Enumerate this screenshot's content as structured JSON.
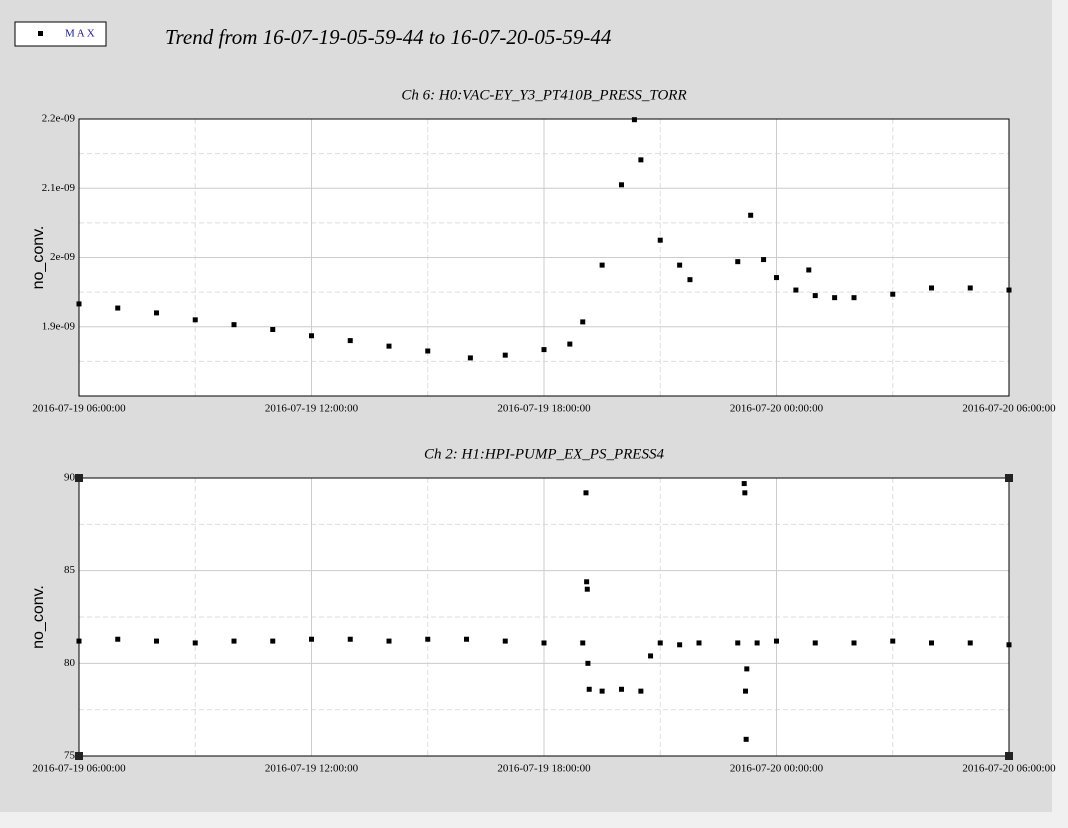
{
  "title": "Trend from 16-07-19-05-59-44 to 16-07-20-05-59-44",
  "chart_data": [
    {
      "type": "scatter",
      "title": "Ch 6: H0:VAC-EY_Y3_PT410B_PRESS_TORR",
      "y_label": "no_conv.",
      "xlim": [
        "2016-07-19 06:00:00",
        "2016-07-20 06:00:00"
      ],
      "xticks": [
        "2016-07-19 06:00:00",
        "2016-07-19 12:00:00",
        "2016-07-19 18:00:00",
        "2016-07-20 00:00:00",
        "2016-07-20 06:00:00"
      ],
      "ylim": [
        1.8e-09,
        2.2e-09
      ],
      "yticks": [
        {
          "value": 1.9e-09,
          "label": "1.9e-09"
        },
        {
          "value": 2e-09,
          "label": "2e-09"
        },
        {
          "value": 2.1e-09,
          "label": "2.1e-09"
        },
        {
          "value": 2.2e-09,
          "label": "2.2e-09"
        }
      ],
      "grid": true,
      "x": [
        "2016-07-19 06:00:00",
        "2016-07-19 07:00:00",
        "2016-07-19 08:00:00",
        "2016-07-19 09:00:00",
        "2016-07-19 10:00:00",
        "2016-07-19 11:00:00",
        "2016-07-19 12:00:00",
        "2016-07-19 13:00:00",
        "2016-07-19 14:00:00",
        "2016-07-19 15:00:00",
        "2016-07-19 16:06:00",
        "2016-07-19 17:00:00",
        "2016-07-19 18:00:00",
        "2016-07-19 18:40:00",
        "2016-07-19 19:00:00",
        "2016-07-19 19:30:00",
        "2016-07-19 20:00:00",
        "2016-07-19 20:20:00",
        "2016-07-19 20:30:00",
        "2016-07-19 21:00:00",
        "2016-07-19 21:30:00",
        "2016-07-19 21:46:00",
        "2016-07-19 23:00:00",
        "2016-07-19 23:20:00",
        "2016-07-19 23:40:00",
        "2016-07-20 00:00:00",
        "2016-07-20 00:30:00",
        "2016-07-20 00:50:00",
        "2016-07-20 01:00:00",
        "2016-07-20 01:30:00",
        "2016-07-20 02:00:00",
        "2016-07-20 03:00:00",
        "2016-07-20 04:00:00",
        "2016-07-20 05:00:00",
        "2016-07-20 06:00:00"
      ],
      "series": [
        {
          "name": "MAX",
          "color": "#000000",
          "values": [
            1.933e-09,
            1.927e-09,
            1.92e-09,
            1.91e-09,
            1.903e-09,
            1.896e-09,
            1.887e-09,
            1.88e-09,
            1.872e-09,
            1.865e-09,
            1.855e-09,
            1.859e-09,
            1.867e-09,
            1.875e-09,
            1.907e-09,
            1.989e-09,
            2.105e-09,
            2.199e-09,
            2.141e-09,
            2.025e-09,
            1.989e-09,
            1.968e-09,
            1.994e-09,
            2.061e-09,
            1.997e-09,
            1.971e-09,
            1.953e-09,
            1.982e-09,
            1.945e-09,
            1.942e-09,
            1.942e-09,
            1.947e-09,
            1.956e-09,
            1.956e-09,
            1.953e-09
          ]
        }
      ]
    },
    {
      "type": "scatter",
      "title": "Ch 2: H1:HPI-PUMP_EX_PS_PRESS4",
      "y_label": "no_conv.",
      "xlim": [
        "2016-07-19 06:00:00",
        "2016-07-20 06:00:00"
      ],
      "xticks": [
        "2016-07-19 06:00:00",
        "2016-07-19 12:00:00",
        "2016-07-19 18:00:00",
        "2016-07-20 00:00:00",
        "2016-07-20 06:00:00"
      ],
      "ylim": [
        75,
        90
      ],
      "yticks": [
        75,
        80,
        85,
        90
      ],
      "grid": true,
      "x": [
        "2016-07-19 06:00:00",
        "2016-07-19 07:00:00",
        "2016-07-19 08:00:00",
        "2016-07-19 09:00:00",
        "2016-07-19 10:00:00",
        "2016-07-19 11:00:00",
        "2016-07-19 12:00:00",
        "2016-07-19 13:00:00",
        "2016-07-19 14:00:00",
        "2016-07-19 15:00:00",
        "2016-07-19 16:00:00",
        "2016-07-19 17:00:00",
        "2016-07-19 18:00:00",
        "2016-07-19 19:00:00",
        "2016-07-19 19:05:00",
        "2016-07-19 19:06:00",
        "2016-07-19 19:07:00",
        "2016-07-19 19:08:00",
        "2016-07-19 19:10:00",
        "2016-07-19 19:30:00",
        "2016-07-19 20:00:00",
        "2016-07-19 20:30:00",
        "2016-07-19 20:45:00",
        "2016-07-19 21:00:00",
        "2016-07-19 21:30:00",
        "2016-07-19 22:00:00",
        "2016-07-19 23:00:00",
        "2016-07-19 23:10:00",
        "2016-07-19 23:11:00",
        "2016-07-19 23:12:00",
        "2016-07-19 23:13:00",
        "2016-07-19 23:14:00",
        "2016-07-19 23:30:00",
        "2016-07-20 00:00:00",
        "2016-07-20 01:00:00",
        "2016-07-20 02:00:00",
        "2016-07-20 03:00:00",
        "2016-07-20 04:00:00",
        "2016-07-20 05:00:00",
        "2016-07-20 06:00:00"
      ],
      "series": [
        {
          "name": "MAX",
          "color": "#000000",
          "values": [
            81.2,
            81.3,
            81.2,
            81.1,
            81.2,
            81.2,
            81.3,
            81.3,
            81.2,
            81.3,
            81.3,
            81.2,
            81.1,
            81.1,
            89.2,
            84.4,
            84.0,
            80.0,
            78.6,
            78.5,
            78.6,
            78.5,
            80.4,
            81.1,
            81.0,
            81.1,
            81.1,
            89.7,
            89.2,
            78.5,
            75.9,
            79.7,
            81.1,
            81.2,
            81.1,
            81.1,
            81.2,
            81.1,
            81.1,
            81.0
          ]
        }
      ]
    }
  ]
}
